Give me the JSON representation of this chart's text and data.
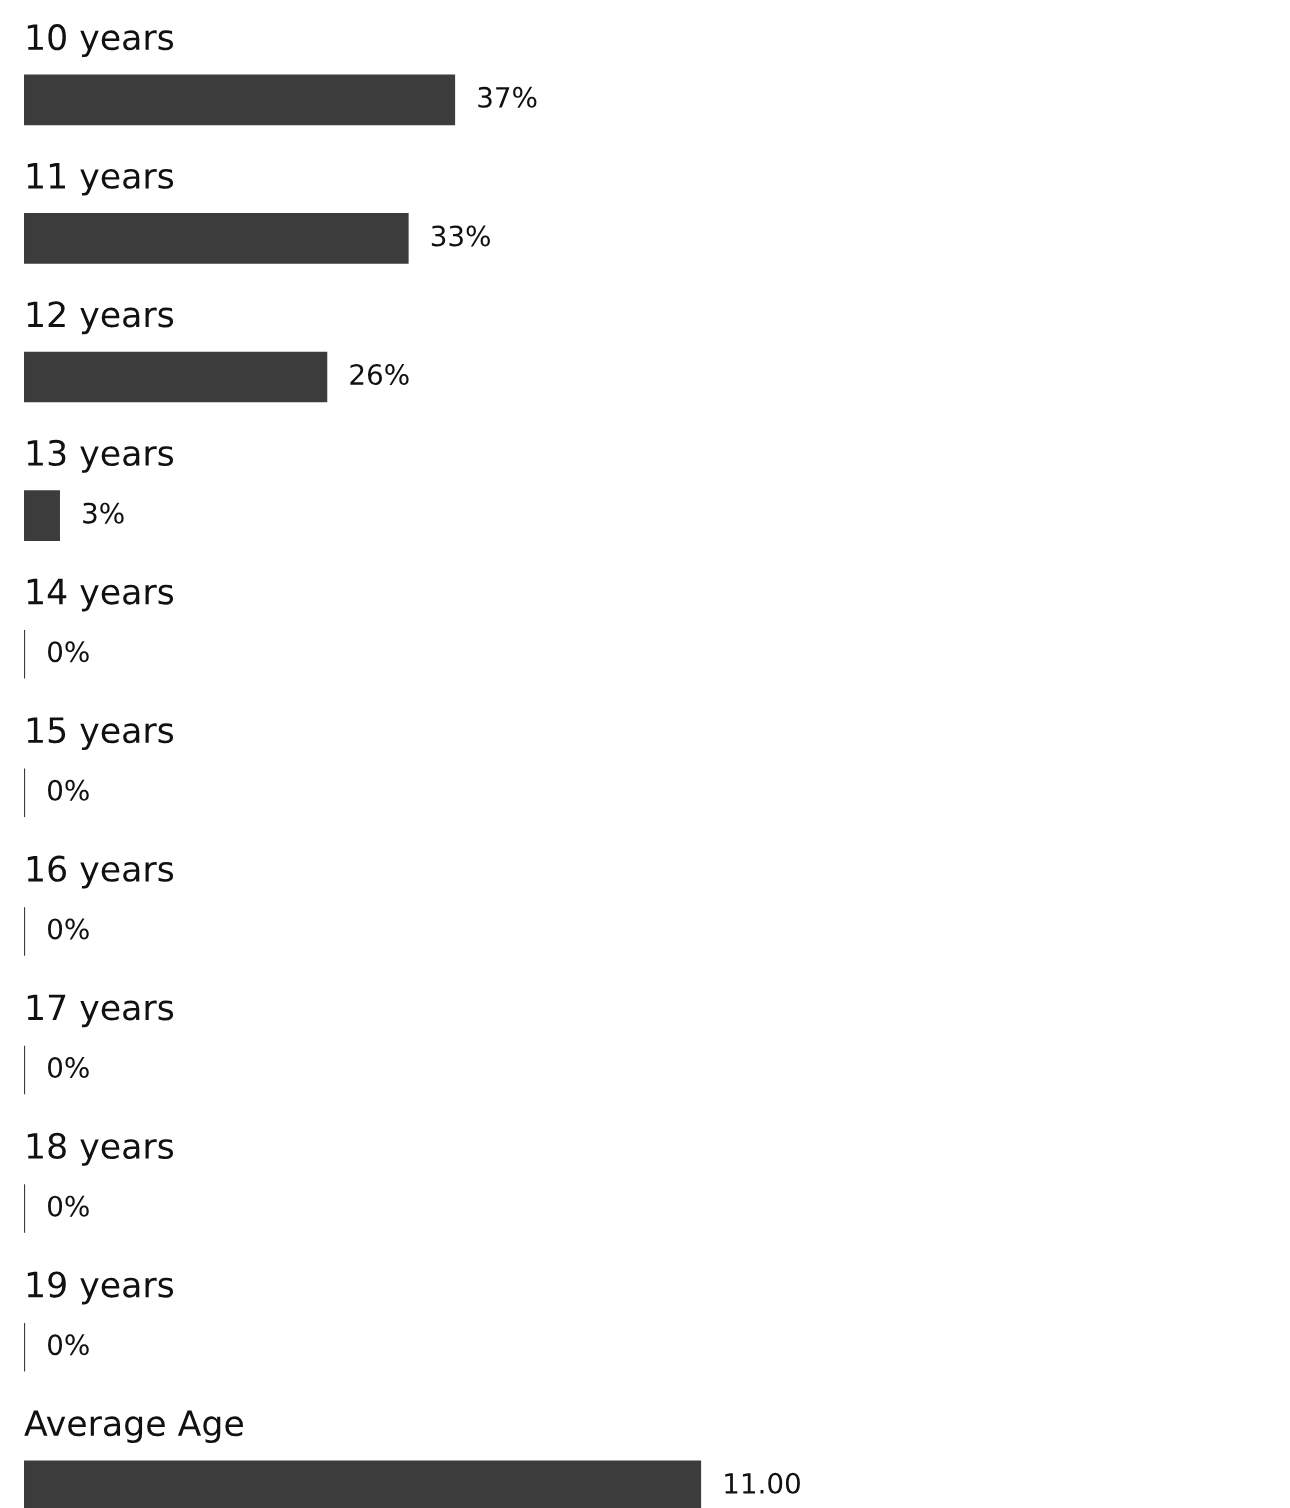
{
  "chart_data": [
    {
      "type": "bar",
      "orientation": "horizontal",
      "color": "#3c3c3c",
      "categories": [
        "10 years",
        "11 years",
        "12 years",
        "13 years",
        "14 years",
        "15 years",
        "16 years",
        "17 years",
        "18 years",
        "19 years"
      ],
      "values": [
        37,
        33,
        26,
        3,
        0,
        0,
        0,
        0,
        0,
        0
      ],
      "value_labels": [
        "37%",
        "33%",
        "26%",
        "3%",
        "0%",
        "0%",
        "0%",
        "0%",
        "0%",
        "0%"
      ]
    },
    {
      "type": "bar",
      "orientation": "horizontal",
      "color": "#3c3c3c",
      "categories": [
        "Average Age"
      ],
      "values": [
        11
      ],
      "value_labels": [
        "11.00"
      ]
    }
  ]
}
